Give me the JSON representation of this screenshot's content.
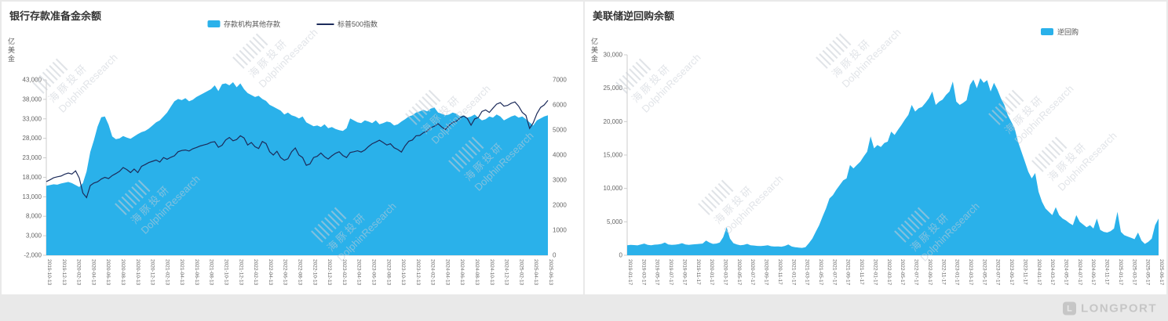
{
  "page": {
    "watermark_cn": "海豚投研",
    "watermark_en": "DolphinResearch",
    "footer_logo_text": "LONGPORT",
    "footer_logo_initial": "L",
    "background": "#e9e9e9"
  },
  "chart_data": [
    {
      "type": "area",
      "title": "银行存款准备金余额",
      "ylabel": "亿美金",
      "grid": false,
      "legend_position": "top-center",
      "y_left": {
        "min": -2000,
        "max": 43000,
        "labels": [
          "-2,000",
          "3,000",
          "8,000",
          "13,000",
          "18,000",
          "23,000",
          "28,000",
          "33,000",
          "38,000",
          "43,000"
        ]
      },
      "y_right": {
        "min": 0,
        "max": 7000,
        "labels": [
          "0",
          "1000",
          "2000",
          "3000",
          "4000",
          "5000",
          "6000",
          "7000"
        ]
      },
      "x_labels": [
        "2019-10-13",
        "2019-12-13",
        "2020-02-13",
        "2020-04-13",
        "2020-06-13",
        "2020-08-13",
        "2020-10-13",
        "2020-12-13",
        "2021-02-13",
        "2021-04-13",
        "2021-06-13",
        "2021-08-13",
        "2021-10-13",
        "2021-12-13",
        "2022-02-13",
        "2022-04-13",
        "2022-06-13",
        "2022-08-13",
        "2022-10-13",
        "2022-12-13",
        "2023-02-13",
        "2023-04-13",
        "2023-06-13",
        "2023-08-13",
        "2023-10-13",
        "2023-12-13",
        "2024-02-13",
        "2024-04-13",
        "2024-06-13",
        "2024-08-13",
        "2024-10-13",
        "2024-12-13",
        "2025-02-13",
        "2025-04-13",
        "2025-06-13"
      ],
      "series": [
        {
          "name": "存款机构其他存款",
          "type": "area",
          "axis": "left",
          "color": "#2ab1ea",
          "values": [
            15800,
            16000,
            16200,
            16100,
            16400,
            16600,
            16800,
            16500,
            16000,
            15500,
            16500,
            19500,
            24500,
            27500,
            31000,
            33400,
            33600,
            31500,
            28500,
            27800,
            28000,
            28600,
            28200,
            27900,
            28500,
            29100,
            29600,
            29900,
            30500,
            31300,
            32100,
            32600,
            33600,
            34600,
            36100,
            37500,
            38100,
            37800,
            38300,
            37500,
            37900,
            38600,
            39100,
            39600,
            40100,
            40600,
            41600,
            40100,
            41900,
            42100,
            41600,
            42400,
            41100,
            42100,
            40600,
            39600,
            39100,
            38600,
            38900,
            38100,
            37600,
            36600,
            36100,
            35600,
            35100,
            34100,
            34600,
            33900,
            33600,
            33100,
            33600,
            32100,
            31600,
            31100,
            31300,
            30900,
            31600,
            30600,
            30900,
            30400,
            30100,
            29900,
            30600,
            33100,
            32600,
            32100,
            31900,
            32600,
            32300,
            31900,
            32600,
            31600,
            31900,
            32300,
            32100,
            31300,
            31600,
            32300,
            32900,
            33600,
            33900,
            34600,
            34900,
            35300,
            34900,
            35600,
            35900,
            34600,
            34300,
            33900,
            34100,
            34600,
            34300,
            33600,
            33900,
            33300,
            33600,
            34100,
            33300,
            32600,
            32900,
            33600,
            33300,
            34100,
            33600,
            32600,
            33100,
            33600,
            33900,
            33300,
            33600,
            32900,
            32100,
            31300,
            32600,
            33100,
            33600,
            33900
          ]
        },
        {
          "name": "标普500指数",
          "type": "line",
          "axis": "right",
          "color": "#1c2b5a",
          "values": [
            2940,
            3010,
            3090,
            3130,
            3160,
            3230,
            3280,
            3240,
            3370,
            3080,
            2480,
            2300,
            2780,
            2880,
            2930,
            3040,
            3110,
            3060,
            3180,
            3260,
            3350,
            3500,
            3420,
            3300,
            3440,
            3300,
            3550,
            3620,
            3700,
            3750,
            3800,
            3720,
            3900,
            3830,
            3910,
            3970,
            4130,
            4180,
            4200,
            4160,
            4250,
            4300,
            4360,
            4400,
            4440,
            4510,
            4530,
            4310,
            4390,
            4600,
            4700,
            4570,
            4620,
            4770,
            4680,
            4400,
            4500,
            4330,
            4260,
            4540,
            4460,
            4130,
            4000,
            4150,
            3900,
            3790,
            3850,
            4130,
            4280,
            4000,
            3900,
            3590,
            3640,
            3900,
            3950,
            4080,
            3930,
            3840,
            3970,
            4070,
            4130,
            3980,
            3900,
            4100,
            4130,
            4170,
            4120,
            4200,
            4340,
            4450,
            4520,
            4590,
            4500,
            4400,
            4450,
            4290,
            4220,
            4120,
            4370,
            4550,
            4600,
            4770,
            4780,
            4890,
            4950,
            5090,
            5150,
            5250,
            5120,
            5020,
            5180,
            5300,
            5350,
            5480,
            5560,
            5460,
            5190,
            5440,
            5500,
            5740,
            5800,
            5700,
            5870,
            6030,
            6090,
            5950,
            5980,
            6070,
            6120,
            5950,
            5700,
            5580,
            5060,
            5280,
            5650,
            5900,
            6000,
            6180
          ]
        }
      ]
    },
    {
      "type": "area",
      "title": "美联储逆回购余额",
      "ylabel": "亿美金",
      "grid": false,
      "legend_position": "top-right",
      "y_left": {
        "min": 0,
        "max": 30000,
        "labels": [
          "0",
          "5,000",
          "10,000",
          "15,000",
          "20,000",
          "25,000",
          "30,000"
        ]
      },
      "x_labels": [
        "2019-01-17",
        "2019-03-17",
        "2019-05-17",
        "2019-07-17",
        "2019-09-17",
        "2019-11-17",
        "2020-01-17",
        "2020-03-17",
        "2020-05-17",
        "2020-07-17",
        "2020-09-17",
        "2020-11-17",
        "2021-01-17",
        "2021-03-17",
        "2021-05-17",
        "2021-07-17",
        "2021-09-17",
        "2021-11-17",
        "2022-01-17",
        "2022-03-17",
        "2022-05-17",
        "2022-07-17",
        "2022-09-17",
        "2022-11-17",
        "2023-01-17",
        "2023-03-17",
        "2023-05-17",
        "2023-07-17",
        "2023-09-17",
        "2023-11-17",
        "2024-01-17",
        "2024-03-17",
        "2024-05-17",
        "2024-07-17",
        "2024-09-17",
        "2024-11-17",
        "2025-01-17",
        "2025-03-17",
        "2025-05-17",
        "2025-06-17"
      ],
      "series": [
        {
          "name": "逆回购",
          "type": "area",
          "axis": "left",
          "color": "#2ab1ea",
          "values": [
            1500,
            1550,
            1520,
            1480,
            1600,
            1750,
            1550,
            1500,
            1580,
            1620,
            1700,
            1900,
            1600,
            1550,
            1580,
            1650,
            1800,
            1600,
            1550,
            1600,
            1650,
            1700,
            1750,
            2200,
            1900,
            1700,
            1750,
            1900,
            2700,
            4200,
            2500,
            1800,
            1600,
            1500,
            1550,
            1700,
            1500,
            1450,
            1400,
            1380,
            1420,
            1500,
            1350,
            1300,
            1320,
            1280,
            1400,
            1600,
            1300,
            1200,
            1150,
            1100,
            1200,
            1800,
            2500,
            3500,
            4500,
            5800,
            7000,
            8500,
            9000,
            9800,
            10500,
            11200,
            11500,
            13500,
            13000,
            13500,
            14000,
            14800,
            15500,
            17800,
            16000,
            16500,
            16200,
            16800,
            17000,
            18500,
            18000,
            18800,
            19500,
            20300,
            21000,
            22500,
            21500,
            22000,
            22200,
            22800,
            23500,
            24500,
            22500,
            23000,
            23300,
            24000,
            24500,
            26000,
            23000,
            22500,
            22800,
            23200,
            25500,
            26300,
            25000,
            26500,
            25800,
            26200,
            24500,
            25800,
            24800,
            23500,
            22500,
            21000,
            20000,
            19000,
            17000,
            15500,
            14000,
            12500,
            11500,
            12300,
            9500,
            8000,
            7000,
            6500,
            6000,
            7200,
            6000,
            5500,
            5200,
            4800,
            4500,
            6000,
            5000,
            4600,
            4200,
            4500,
            4000,
            5500,
            3800,
            3500,
            3400,
            3600,
            4000,
            6500,
            3500,
            3000,
            2800,
            2600,
            2400,
            3400,
            2200,
            1700,
            2000,
            2500,
            4500,
            5500
          ]
        }
      ]
    }
  ]
}
